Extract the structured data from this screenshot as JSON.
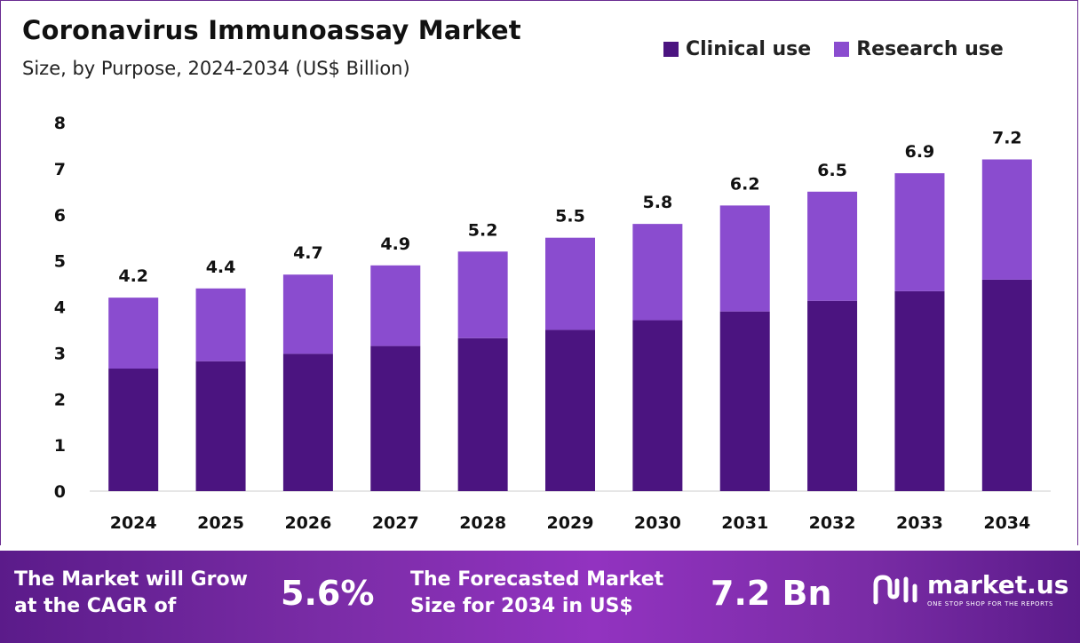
{
  "header": {
    "title": "Coronavirus Immunoassay Market",
    "subtitle": "Size, by Purpose, 2024-2034 (US$ Billion)"
  },
  "legend": {
    "clinical_label": "Clinical use",
    "research_label": "Research use"
  },
  "colors": {
    "clinical": "#4b1480",
    "research": "#8a4ccf",
    "border": "#6a2c91"
  },
  "chart_data": {
    "type": "bar",
    "stacked": true,
    "categories": [
      "2024",
      "2025",
      "2026",
      "2027",
      "2028",
      "2029",
      "2030",
      "2031",
      "2032",
      "2033",
      "2034"
    ],
    "series": [
      {
        "name": "Clinical use",
        "values": [
          2.66,
          2.82,
          2.98,
          3.15,
          3.32,
          3.5,
          3.71,
          3.9,
          4.13,
          4.34,
          4.59
        ]
      },
      {
        "name": "Research use",
        "values": [
          1.54,
          1.58,
          1.72,
          1.75,
          1.88,
          2.0,
          2.09,
          2.3,
          2.37,
          2.56,
          2.61
        ]
      }
    ],
    "totals": [
      "4.2",
      "4.4",
      "4.7",
      "4.9",
      "5.2",
      "5.5",
      "5.8",
      "6.2",
      "6.5",
      "6.9",
      "7.2"
    ],
    "ylim": [
      0,
      8
    ],
    "yticks": [
      0,
      1,
      2,
      3,
      4,
      5,
      6,
      7,
      8
    ],
    "grid": false,
    "legend_position": "top-right"
  },
  "banner": {
    "cagr_text": "The Market will Grow at the CAGR of",
    "cagr_value": "5.6%",
    "forecast_text": "The Forecasted Market Size for 2034 in US$",
    "forecast_value": "7.2 Bn",
    "brand_name": "market.us",
    "brand_tagline": "ONE STOP SHOP FOR THE REPORTS",
    "brand_icon": "market-us-logo"
  }
}
